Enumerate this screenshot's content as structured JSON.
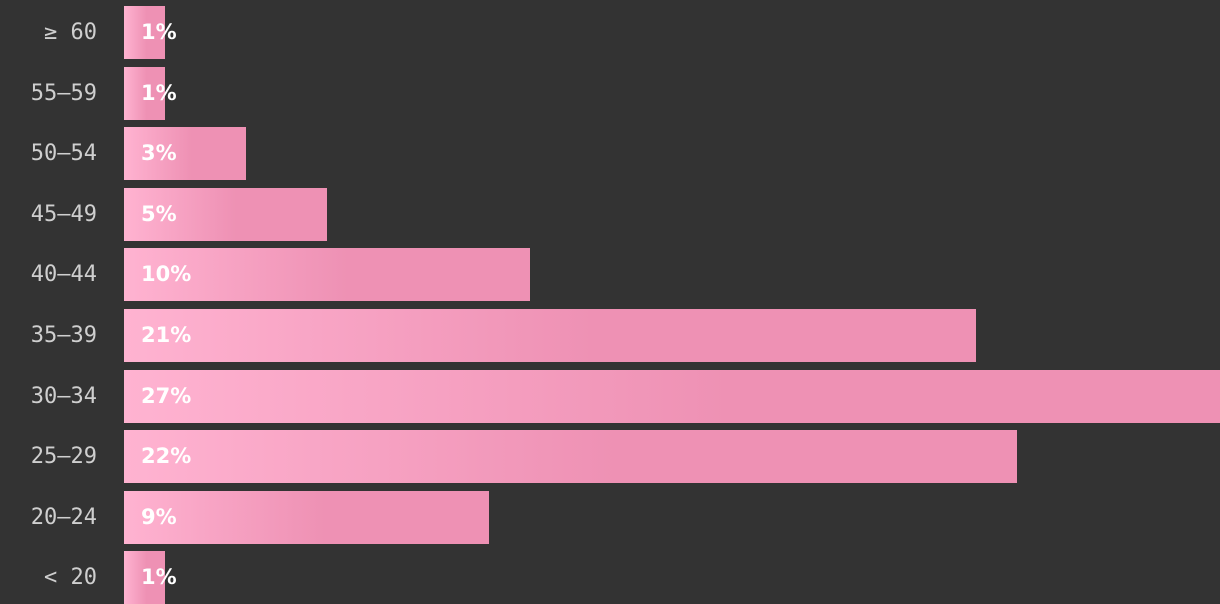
{
  "chart_data": {
    "type": "bar",
    "orientation": "horizontal",
    "categories": [
      "≥ 60",
      "55—59",
      "50—54",
      "45—49",
      "40—44",
      "35—39",
      "30—34",
      "25—29",
      "20—24",
      "< 20"
    ],
    "values": [
      1,
      1,
      3,
      5,
      10,
      21,
      27,
      22,
      9,
      1
    ],
    "value_labels": [
      "1%",
      "1%",
      "3%",
      "5%",
      "10%",
      "21%",
      "27%",
      "22%",
      "9%",
      "1%"
    ],
    "xlim": [
      0,
      27
    ],
    "grid": false,
    "colors": {
      "background": "#333333",
      "bar_start": "#ffb3d1",
      "bar_end": "#ee91b4",
      "category_text": "#cfcfcf",
      "value_text": "#ffffff"
    }
  }
}
